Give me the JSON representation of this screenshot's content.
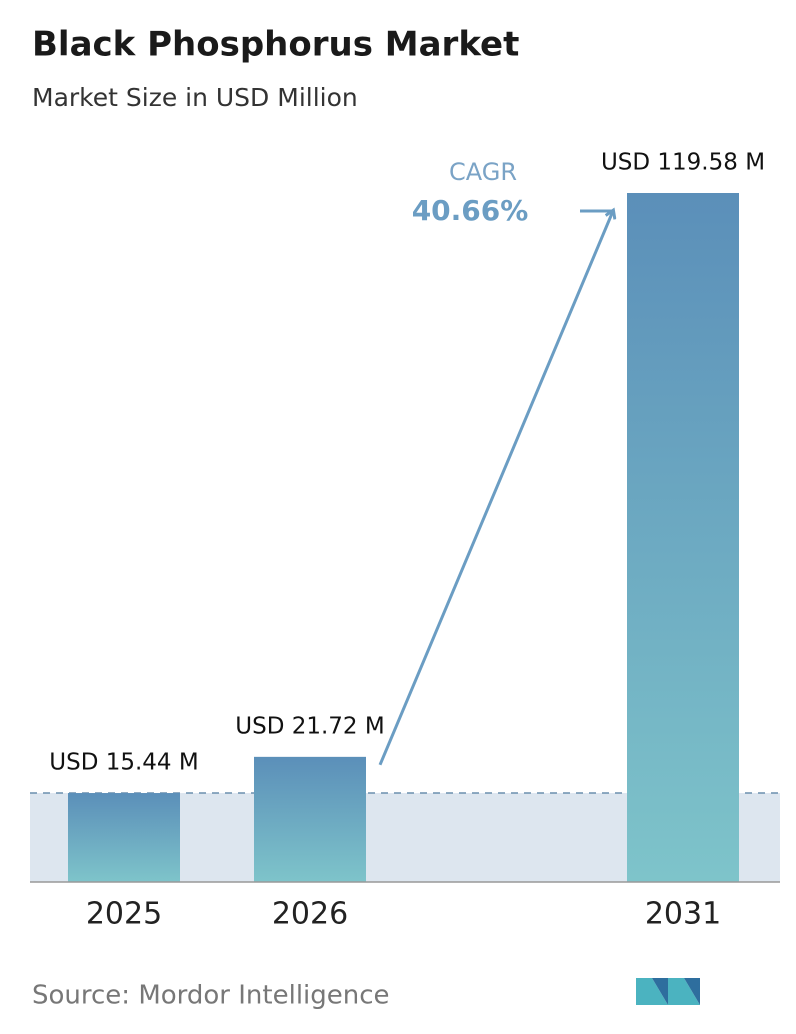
{
  "chart_data": {
    "type": "bar",
    "title": "Black Phosphorus Market",
    "subtitle": "Market Size in USD Million",
    "categories": [
      "2025",
      "2026",
      "2031"
    ],
    "values": [
      15.44,
      21.72,
      119.58
    ],
    "value_labels": [
      "USD 15.44 M",
      "USD 21.72 M",
      "USD 119.58 M"
    ],
    "annotation": {
      "label": "CAGR",
      "value": "40.66%"
    },
    "source": "Source:  Mordor Intelligence"
  }
}
